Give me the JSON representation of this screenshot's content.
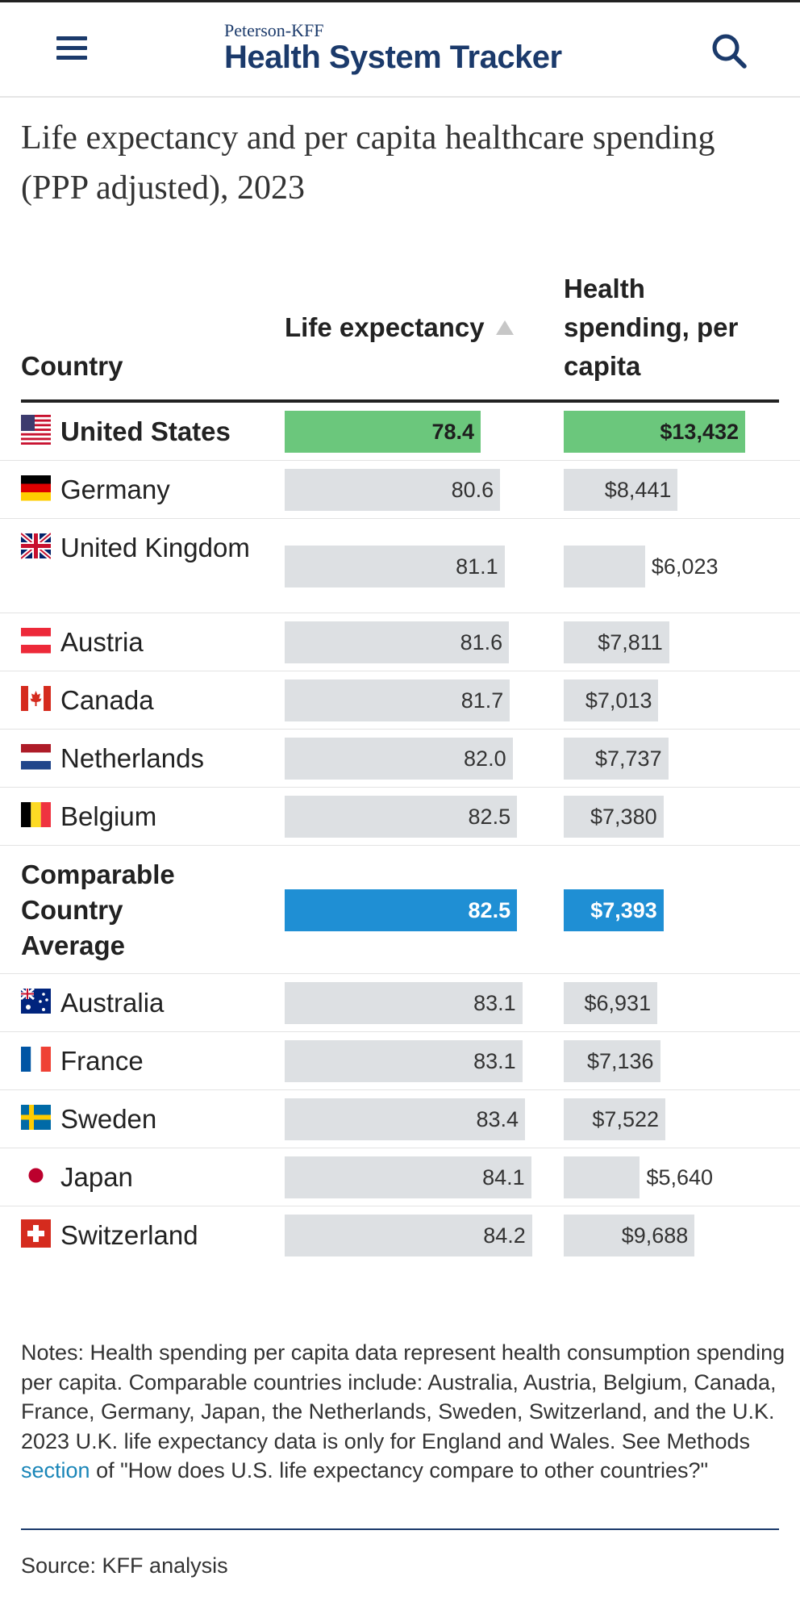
{
  "header": {
    "brand_top": "Peterson-KFF",
    "brand_main": "Health System Tracker",
    "menu_icon": "hamburger-menu-icon",
    "search_icon": "search-icon",
    "brand_color": "#1b3a6b"
  },
  "chart_data": {
    "type": "table",
    "title": "Life expectancy and per capita healthcare spending (PPP adjusted), 2023",
    "columns": [
      "Country",
      "Life expectancy",
      "Health spending, per capita"
    ],
    "sorted_by": "Life expectancy",
    "sort_direction": "ascending",
    "life_max": 84.2,
    "spend_max": 13432,
    "rows": [
      {
        "country": "United States",
        "flag": "us",
        "life": 78.4,
        "life_label": "78.4",
        "spend": 13432,
        "spend_label": "$13,432",
        "highlight": "us"
      },
      {
        "country": "Germany",
        "flag": "de",
        "life": 80.6,
        "life_label": "80.6",
        "spend": 8441,
        "spend_label": "$8,441"
      },
      {
        "country": "United Kingdom",
        "flag": "gb",
        "life": 81.1,
        "life_label": "81.1",
        "spend": 6023,
        "spend_label": "$6,023"
      },
      {
        "country": "Austria",
        "flag": "at",
        "life": 81.6,
        "life_label": "81.6",
        "spend": 7811,
        "spend_label": "$7,811"
      },
      {
        "country": "Canada",
        "flag": "ca",
        "life": 81.7,
        "life_label": "81.7",
        "spend": 7013,
        "spend_label": "$7,013"
      },
      {
        "country": "Netherlands",
        "flag": "nl",
        "life": 82.0,
        "life_label": "82.0",
        "spend": 7737,
        "spend_label": "$7,737"
      },
      {
        "country": "Belgium",
        "flag": "be",
        "life": 82.5,
        "life_label": "82.5",
        "spend": 7380,
        "spend_label": "$7,380"
      },
      {
        "country": "Comparable Country Average",
        "flag": "",
        "life": 82.5,
        "life_label": "82.5",
        "spend": 7393,
        "spend_label": "$7,393",
        "highlight": "avg"
      },
      {
        "country": "Australia",
        "flag": "au",
        "life": 83.1,
        "life_label": "83.1",
        "spend": 6931,
        "spend_label": "$6,931"
      },
      {
        "country": "France",
        "flag": "fr",
        "life": 83.1,
        "life_label": "83.1",
        "spend": 7136,
        "spend_label": "$7,136"
      },
      {
        "country": "Sweden",
        "flag": "se",
        "life": 83.4,
        "life_label": "83.4",
        "spend": 7522,
        "spend_label": "$7,522"
      },
      {
        "country": "Japan",
        "flag": "jp",
        "life": 84.1,
        "life_label": "84.1",
        "spend": 5640,
        "spend_label": "$5,640"
      },
      {
        "country": "Switzerland",
        "flag": "ch",
        "life": 84.2,
        "life_label": "84.2",
        "spend": 9688,
        "spend_label": "$9,688"
      }
    ],
    "colors": {
      "us": "#6bc77c",
      "avg": "#1f8fd4",
      "other": "#dde0e3"
    }
  },
  "notes": {
    "text_before": "Notes: Health spending per capita data represent health consumption spending per capita. Comparable countries include: Australia, Austria, Belgium, Canada, France, Germany, Japan, the Netherlands, Sweden, Switzerland, and the U.K. 2023 U.K. life expectancy data is only for England and Wales. See Methods ",
    "link": "section",
    "text_after": " of \"How does U.S. life expectancy compare to other countries?\""
  },
  "source": "Source: KFF analysis"
}
